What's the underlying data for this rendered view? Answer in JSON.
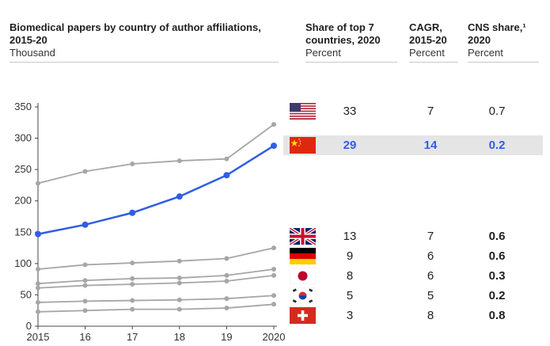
{
  "header": {
    "title": "Biomedical papers by country of author affiliations, 2015-20",
    "unit": "Thousand"
  },
  "columns": [
    {
      "heading": "Share of top 7 countries, 2020",
      "unit": "Percent"
    },
    {
      "heading": "CAGR, 2015-20",
      "unit": "Percent"
    },
    {
      "heading": "CNS share,¹ 2020",
      "unit": "Percent"
    }
  ],
  "rows": [
    {
      "flag": "us-flag-icon",
      "share": "33",
      "cagr": "7",
      "cns": "0.7",
      "highlight": false
    },
    {
      "flag": "china-flag-icon",
      "share": "29",
      "cagr": "14",
      "cns": "0.2",
      "highlight": true
    },
    {
      "flag": "uk-flag-icon",
      "share": "13",
      "cagr": "7",
      "cns": "0.6",
      "highlight": false
    },
    {
      "flag": "germany-flag-icon",
      "share": "9",
      "cagr": "6",
      "cns": "0.6",
      "highlight": false
    },
    {
      "flag": "japan-flag-icon",
      "share": "8",
      "cagr": "6",
      "cns": "0.3",
      "highlight": false
    },
    {
      "flag": "south-korea-flag-icon",
      "share": "5",
      "cagr": "5",
      "cns": "0.2",
      "highlight": false
    },
    {
      "flag": "switzerland-flag-icon",
      "share": "3",
      "cagr": "8",
      "cns": "0.8",
      "highlight": false
    }
  ],
  "colors": {
    "highlight_series": "#2f5de8",
    "other_series": "#a6a6a6",
    "highlight_row": "#e5e5e5"
  },
  "chart_data": {
    "type": "line",
    "x": [
      2015,
      2016,
      2017,
      2018,
      2019,
      2020
    ],
    "x_tick_labels": [
      "2015",
      "16",
      "17",
      "18",
      "19",
      "2020"
    ],
    "y_ticks": [
      0,
      50,
      100,
      150,
      200,
      250,
      300,
      350
    ],
    "ylim": [
      0,
      350
    ],
    "grid": false,
    "series": [
      {
        "values": [
          228,
          247,
          259,
          264,
          267,
          322
        ],
        "highlight": false
      },
      {
        "values": [
          147,
          162,
          181,
          207,
          241,
          288
        ],
        "highlight": true
      },
      {
        "values": [
          91,
          98,
          101,
          104,
          108,
          125
        ],
        "highlight": false
      },
      {
        "values": [
          68,
          73,
          76,
          77,
          81,
          91
        ],
        "highlight": false
      },
      {
        "values": [
          61,
          65,
          67,
          69,
          72,
          81
        ],
        "highlight": false
      },
      {
        "values": [
          38,
          40,
          41,
          42,
          44,
          49
        ],
        "highlight": false
      },
      {
        "values": [
          23,
          25,
          27,
          27,
          29,
          35
        ],
        "highlight": false
      }
    ]
  }
}
